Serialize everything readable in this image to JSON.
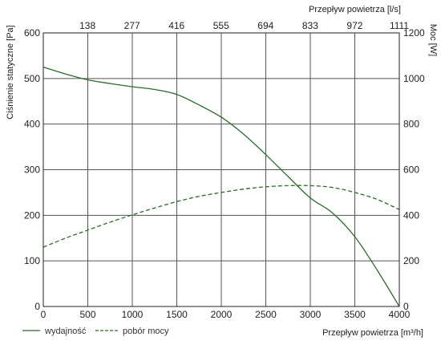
{
  "chart_data": {
    "type": "line",
    "xlabel": "Przepływ powietrza [m³/h]",
    "x2label": "Przepływ powietrza [l/s]",
    "ylabel": "Ciśnienie statyczne [Pa]",
    "y2label": "Moc [W]",
    "xlim": [
      0,
      4000
    ],
    "ylim": [
      0,
      600
    ],
    "y2lim": [
      0,
      1200
    ],
    "x_ticks": [
      0,
      500,
      1000,
      1500,
      2000,
      2500,
      3000,
      3500,
      4000
    ],
    "x2_ticks": [
      138,
      277,
      416,
      555,
      694,
      833,
      972,
      1111
    ],
    "y_ticks": [
      0,
      100,
      200,
      300,
      400,
      500,
      600
    ],
    "y2_ticks": [
      0,
      200,
      400,
      600,
      800,
      1000,
      1200
    ],
    "grid": true,
    "legend_position": "bottom-left",
    "colors": {
      "series": "#2d6a2d",
      "grid": "#555555",
      "frame": "#222222"
    },
    "series": [
      {
        "name": "wydajność",
        "axis": "left",
        "style": "solid",
        "x": [
          0,
          250,
          500,
          750,
          1000,
          1250,
          1500,
          1750,
          2000,
          2250,
          2500,
          2750,
          3000,
          3250,
          3500,
          3750,
          4000
        ],
        "y": [
          525,
          510,
          497,
          489,
          482,
          476,
          465,
          442,
          415,
          378,
          333,
          285,
          238,
          205,
          153,
          80,
          0
        ]
      },
      {
        "name": "pobór mocy",
        "axis": "right",
        "style": "dashed",
        "x": [
          0,
          250,
          500,
          750,
          1000,
          1250,
          1500,
          1750,
          2000,
          2250,
          2500,
          2750,
          3000,
          3250,
          3500,
          3750,
          4000
        ],
        "y": [
          260,
          300,
          335,
          370,
          402,
          432,
          460,
          483,
          500,
          515,
          525,
          530,
          530,
          522,
          500,
          470,
          425
        ]
      }
    ]
  }
}
